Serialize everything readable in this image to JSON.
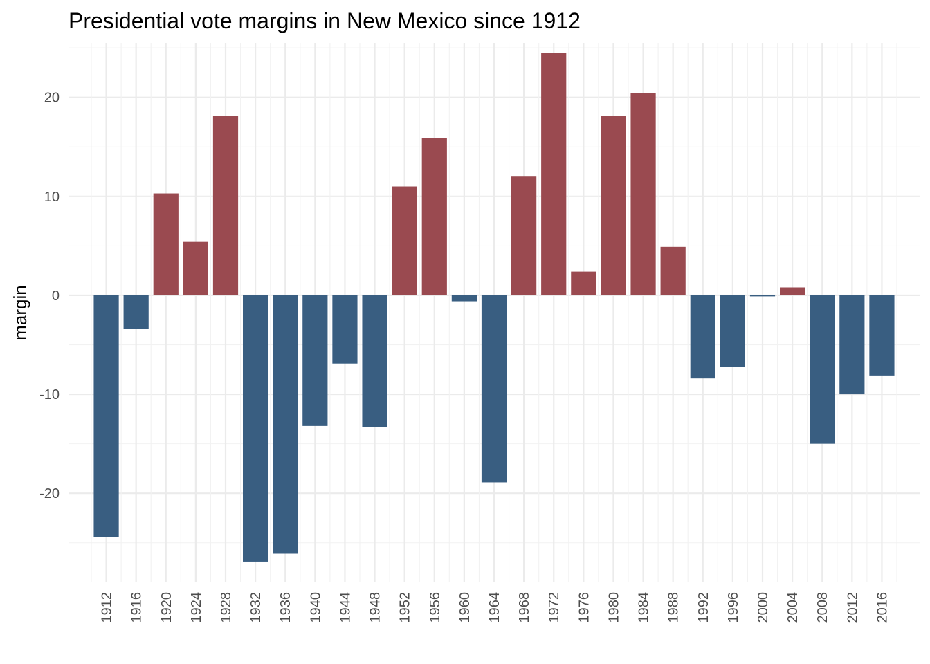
{
  "chart_data": {
    "type": "bar",
    "title": "Presidential vote margins in New Mexico since 1912",
    "xlabel": "",
    "ylabel": "margin",
    "categories": [
      "1912",
      "1916",
      "1920",
      "1924",
      "1928",
      "1932",
      "1936",
      "1940",
      "1944",
      "1948",
      "1952",
      "1956",
      "1960",
      "1964",
      "1968",
      "1972",
      "1976",
      "1980",
      "1984",
      "1988",
      "1992",
      "1996",
      "2000",
      "2004",
      "2008",
      "2012",
      "2016"
    ],
    "values": [
      -24.4,
      -3.4,
      10.3,
      5.4,
      18.1,
      -26.9,
      -26.1,
      -13.2,
      -6.9,
      -13.3,
      11.0,
      15.9,
      -0.6,
      -18.9,
      12.0,
      24.5,
      2.4,
      18.1,
      20.4,
      4.9,
      -8.4,
      -7.2,
      -0.1,
      0.8,
      -15.0,
      -10.0,
      -8.1
    ],
    "ylim": [
      -29,
      25.5
    ],
    "yticks": [
      -20,
      -10,
      0,
      10,
      20
    ],
    "grid": true,
    "legend": "none",
    "colors": {
      "positive": "#9a4a50",
      "negative": "#395e81"
    }
  }
}
